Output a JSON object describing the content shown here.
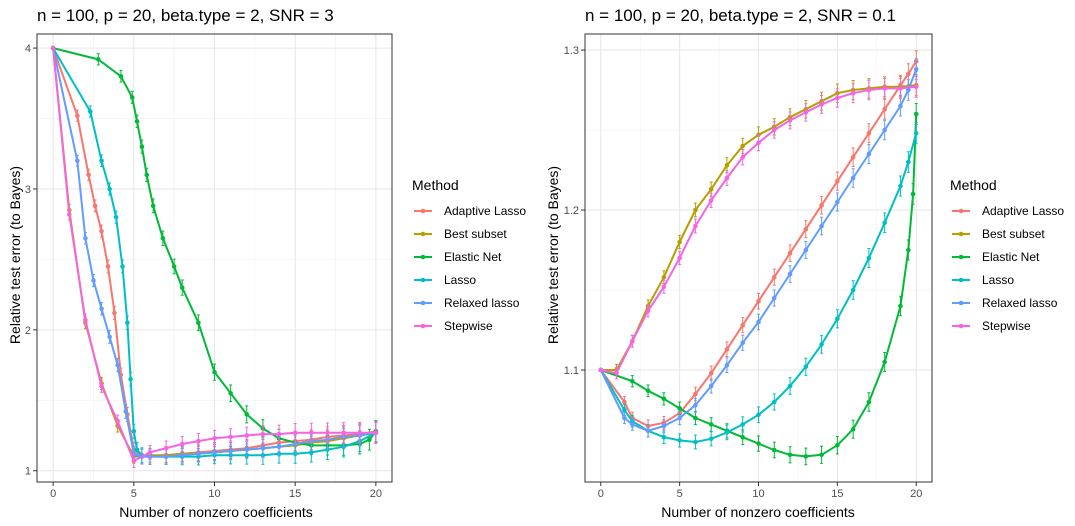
{
  "chart_data": [
    {
      "type": "line",
      "title": "n = 100, p = 20, beta.type = 2, SNR = 3",
      "xlabel": "Number of nonzero coefficients",
      "ylabel": "Relative test error (to Bayes)",
      "xlim": [
        -1,
        21
      ],
      "ylim": [
        0.92,
        4.1
      ],
      "xticks": [
        0,
        5,
        10,
        15,
        20
      ],
      "xtick_labels": [
        "0",
        "5",
        "10",
        "15",
        "20"
      ],
      "yticks": [
        1,
        2,
        3,
        4
      ],
      "ytick_labels": [
        "1",
        "2",
        "3",
        "4"
      ],
      "grid": true,
      "series": [
        {
          "name": "Adaptive Lasso",
          "color": "#F8766D",
          "x": [
            0,
            1.5,
            2.2,
            2.6,
            3.0,
            3.4,
            3.8,
            4.2,
            4.6,
            5.0,
            5.5,
            6,
            7,
            8,
            9,
            10,
            11,
            12,
            13,
            14,
            15,
            16,
            17,
            18,
            19,
            20
          ],
          "y": [
            4.0,
            3.52,
            3.1,
            2.88,
            2.7,
            2.45,
            2.12,
            1.68,
            1.4,
            1.15,
            1.1,
            1.1,
            1.11,
            1.12,
            1.13,
            1.14,
            1.15,
            1.16,
            1.18,
            1.2,
            1.21,
            1.22,
            1.24,
            1.25,
            1.26,
            1.28
          ]
        },
        {
          "name": "Best subset",
          "color": "#B79F00",
          "x": [
            0,
            1,
            2,
            3,
            4,
            5,
            6,
            7,
            8,
            9,
            10,
            11,
            12,
            13,
            14,
            15,
            16,
            17,
            18,
            19,
            20
          ],
          "y": [
            4.0,
            2.85,
            2.05,
            1.62,
            1.32,
            1.1,
            1.11,
            1.11,
            1.12,
            1.12,
            1.13,
            1.14,
            1.15,
            1.16,
            1.17,
            1.18,
            1.2,
            1.21,
            1.23,
            1.25,
            1.27
          ]
        },
        {
          "name": "Elastic Net",
          "color": "#00BA38",
          "x": [
            0,
            2.8,
            4.2,
            4.9,
            5.2,
            5.5,
            5.8,
            6.2,
            6.8,
            7.5,
            8.0,
            9.0,
            10.0,
            11.0,
            12.0,
            13.0,
            14.0,
            15.0,
            16.0,
            17.0,
            18.0,
            19.0,
            19.6,
            20.0
          ],
          "y": [
            4.0,
            3.92,
            3.8,
            3.65,
            3.48,
            3.3,
            3.1,
            2.88,
            2.65,
            2.45,
            2.3,
            2.05,
            1.7,
            1.55,
            1.4,
            1.3,
            1.23,
            1.2,
            1.18,
            1.18,
            1.18,
            1.19,
            1.22,
            1.28
          ]
        },
        {
          "name": "Lasso",
          "color": "#00BFC4",
          "x": [
            0,
            2.3,
            3.0,
            3.5,
            3.9,
            4.3,
            4.6,
            4.8,
            5.0,
            5.2,
            5.5,
            6,
            7,
            8,
            9,
            10,
            11,
            12,
            13,
            14,
            15,
            16,
            17,
            18,
            19,
            20
          ],
          "y": [
            4.0,
            3.55,
            3.2,
            3.0,
            2.8,
            2.45,
            2.05,
            1.65,
            1.28,
            1.15,
            1.11,
            1.1,
            1.1,
            1.1,
            1.1,
            1.11,
            1.11,
            1.11,
            1.11,
            1.12,
            1.12,
            1.13,
            1.15,
            1.17,
            1.21,
            1.27
          ]
        },
        {
          "name": "Relaxed lasso",
          "color": "#619CFF",
          "x": [
            0,
            1.5,
            2.0,
            2.5,
            3.0,
            3.5,
            4.0,
            4.5,
            5.0,
            5.5,
            6,
            7,
            8,
            9,
            10,
            11,
            12,
            13,
            14,
            15,
            16,
            17,
            18,
            19,
            20
          ],
          "y": [
            4.0,
            3.2,
            2.65,
            2.35,
            2.15,
            1.95,
            1.75,
            1.42,
            1.12,
            1.1,
            1.1,
            1.1,
            1.11,
            1.12,
            1.13,
            1.14,
            1.15,
            1.16,
            1.17,
            1.19,
            1.21,
            1.22,
            1.24,
            1.25,
            1.27
          ]
        },
        {
          "name": "Stepwise",
          "color": "#F564E3",
          "x": [
            0,
            1,
            2,
            3,
            4,
            5,
            6,
            7,
            8,
            9,
            10,
            11,
            12,
            13,
            14,
            15,
            16,
            17,
            18,
            19,
            20
          ],
          "y": [
            4.0,
            2.82,
            2.07,
            1.6,
            1.35,
            1.07,
            1.13,
            1.16,
            1.19,
            1.21,
            1.23,
            1.24,
            1.25,
            1.26,
            1.26,
            1.27,
            1.27,
            1.27,
            1.27,
            1.27,
            1.27
          ]
        }
      ]
    },
    {
      "type": "line",
      "title": "n = 100, p = 20, beta.type = 2, SNR = 0.1",
      "xlabel": "Number of nonzero coefficients",
      "ylabel": "Relative test error (to Bayes)",
      "xlim": [
        -1,
        21
      ],
      "ylim": [
        1.03,
        1.31
      ],
      "xticks": [
        0,
        5,
        10,
        15,
        20
      ],
      "xtick_labels": [
        "0",
        "5",
        "10",
        "15",
        "20"
      ],
      "yticks": [
        1.1,
        1.2,
        1.3
      ],
      "ytick_labels": [
        "1.1",
        "1.2",
        "1.3"
      ],
      "grid": true,
      "series": [
        {
          "name": "Adaptive Lasso",
          "color": "#F8766D",
          "x": [
            0,
            1.5,
            2,
            3,
            4,
            5,
            6,
            7,
            8,
            9,
            10,
            11,
            12,
            13,
            14,
            15,
            16,
            17,
            18,
            19,
            19.5,
            20
          ],
          "y": [
            1.1,
            1.08,
            1.07,
            1.065,
            1.067,
            1.073,
            1.085,
            1.098,
            1.113,
            1.128,
            1.143,
            1.158,
            1.173,
            1.188,
            1.203,
            1.218,
            1.233,
            1.248,
            1.263,
            1.278,
            1.285,
            1.293
          ]
        },
        {
          "name": "Best subset",
          "color": "#B79F00",
          "x": [
            0,
            1,
            2,
            3,
            4,
            5,
            6,
            7,
            8,
            9,
            10,
            11,
            12,
            13,
            14,
            15,
            16,
            17,
            18,
            19,
            20
          ],
          "y": [
            1.1,
            1.1,
            1.118,
            1.14,
            1.158,
            1.18,
            1.2,
            1.213,
            1.228,
            1.24,
            1.247,
            1.252,
            1.258,
            1.263,
            1.268,
            1.273,
            1.275,
            1.276,
            1.277,
            1.277,
            1.278
          ]
        },
        {
          "name": "Elastic Net",
          "color": "#00BA38",
          "x": [
            0,
            2,
            3,
            4,
            5,
            6,
            7,
            8,
            9,
            10,
            11,
            12,
            13,
            14,
            15,
            16,
            17,
            18,
            19,
            19.5,
            19.8,
            20
          ],
          "y": [
            1.1,
            1.093,
            1.087,
            1.082,
            1.076,
            1.07,
            1.066,
            1.062,
            1.058,
            1.054,
            1.05,
            1.047,
            1.046,
            1.047,
            1.053,
            1.063,
            1.08,
            1.105,
            1.14,
            1.175,
            1.21,
            1.26
          ]
        },
        {
          "name": "Lasso",
          "color": "#00BFC4",
          "x": [
            0,
            1.5,
            2,
            3,
            4,
            5,
            6,
            7,
            8,
            9,
            10,
            11,
            12,
            13,
            14,
            15,
            16,
            17,
            18,
            19,
            19.5,
            20
          ],
          "y": [
            1.1,
            1.075,
            1.068,
            1.062,
            1.058,
            1.056,
            1.055,
            1.057,
            1.061,
            1.066,
            1.072,
            1.08,
            1.09,
            1.102,
            1.116,
            1.132,
            1.15,
            1.17,
            1.192,
            1.215,
            1.23,
            1.248
          ]
        },
        {
          "name": "Relaxed lasso",
          "color": "#619CFF",
          "x": [
            0,
            1.5,
            2,
            3,
            4,
            5,
            6,
            7,
            8,
            9,
            10,
            11,
            12,
            13,
            14,
            15,
            16,
            17,
            18,
            19,
            19.5,
            20
          ],
          "y": [
            1.1,
            1.07,
            1.066,
            1.062,
            1.065,
            1.07,
            1.078,
            1.09,
            1.103,
            1.117,
            1.13,
            1.145,
            1.16,
            1.175,
            1.19,
            1.205,
            1.22,
            1.235,
            1.25,
            1.265,
            1.275,
            1.288
          ]
        },
        {
          "name": "Stepwise",
          "color": "#F564E3",
          "x": [
            0,
            1,
            2,
            3,
            4,
            5,
            6,
            7,
            8,
            9,
            10,
            11,
            12,
            13,
            14,
            15,
            16,
            17,
            18,
            19,
            20
          ],
          "y": [
            1.1,
            1.098,
            1.118,
            1.137,
            1.152,
            1.17,
            1.19,
            1.206,
            1.22,
            1.233,
            1.242,
            1.25,
            1.256,
            1.261,
            1.266,
            1.27,
            1.273,
            1.275,
            1.276,
            1.276,
            1.277
          ]
        }
      ]
    }
  ],
  "legend": {
    "title": "Method",
    "placement": "right",
    "entries": [
      "Adaptive Lasso",
      "Best subset",
      "Elastic Net",
      "Lasso",
      "Relaxed lasso",
      "Stepwise"
    ]
  }
}
